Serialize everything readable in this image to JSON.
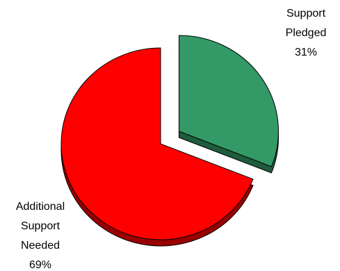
{
  "chart_data": {
    "type": "pie",
    "categories": [
      "Support Pledged",
      "Additional Support Needed"
    ],
    "values": [
      31,
      69
    ],
    "value_labels": [
      "31%",
      "69%"
    ],
    "colors": [
      "#339966",
      "#ff0000"
    ],
    "explode": [
      true,
      false
    ]
  }
}
